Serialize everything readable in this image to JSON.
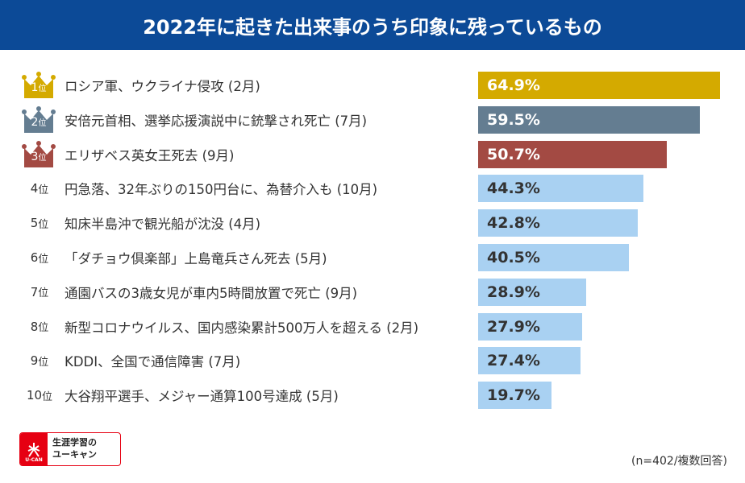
{
  "chart_data": {
    "type": "bar",
    "orientation": "horizontal",
    "title": "2022年に起きた出来事のうち印象に残っているもの",
    "unit": "%",
    "xlim": [
      0,
      100
    ],
    "grid": false,
    "items": [
      {
        "rank": "1",
        "rank_suffix": "位",
        "label": "ロシア軍、ウクライナ侵攻 (2月)",
        "value": 64.9,
        "value_label": "64.9%",
        "color": "#d4aa00",
        "text_color": "#ffffff",
        "crown_color": "#d4aa00"
      },
      {
        "rank": "2",
        "rank_suffix": "位",
        "label": "安倍元首相、選挙応援演説中に銃撃され死亡 (7月)",
        "value": 59.5,
        "value_label": "59.5%",
        "color": "#647d91",
        "text_color": "#ffffff",
        "crown_color": "#647d91"
      },
      {
        "rank": "3",
        "rank_suffix": "位",
        "label": "エリザベス英女王死去 (9月)",
        "value": 50.7,
        "value_label": "50.7%",
        "color": "#a34a43",
        "text_color": "#ffffff",
        "crown_color": "#a34a43"
      },
      {
        "rank": "4",
        "rank_suffix": "位",
        "label": "円急落、32年ぶりの150円台に、為替介入も (10月)",
        "value": 44.3,
        "value_label": "44.3%",
        "color": "#a9d1f2",
        "text_color": "#333333"
      },
      {
        "rank": "5",
        "rank_suffix": "位",
        "label": "知床半島沖で観光船が沈没 (4月)",
        "value": 42.8,
        "value_label": "42.8%",
        "color": "#a9d1f2",
        "text_color": "#333333"
      },
      {
        "rank": "6",
        "rank_suffix": "位",
        "label": "「ダチョウ倶楽部」上島竜兵さん死去 (5月)",
        "value": 40.5,
        "value_label": "40.5%",
        "color": "#a9d1f2",
        "text_color": "#333333"
      },
      {
        "rank": "7",
        "rank_suffix": "位",
        "label": "通園バスの3歳女児が車内5時間放置で死亡 (9月)",
        "value": 28.9,
        "value_label": "28.9%",
        "color": "#a9d1f2",
        "text_color": "#333333"
      },
      {
        "rank": "8",
        "rank_suffix": "位",
        "label": "新型コロナウイルス、国内感染累計500万人を超える (2月)",
        "value": 27.9,
        "value_label": "27.9%",
        "color": "#a9d1f2",
        "text_color": "#333333"
      },
      {
        "rank": "9",
        "rank_suffix": "位",
        "label": "KDDI、全国で通信障害 (7月)",
        "value": 27.4,
        "value_label": "27.4%",
        "color": "#a9d1f2",
        "text_color": "#333333"
      },
      {
        "rank": "10",
        "rank_suffix": "位",
        "label": "大谷翔平選手、メジャー通算100号達成 (5月)",
        "value": 19.7,
        "value_label": "19.7%",
        "color": "#a9d1f2",
        "text_color": "#333333"
      }
    ],
    "note": "(n=402/複数回答)"
  },
  "logo": {
    "brand": "U-CAN",
    "line1": "生涯学習の",
    "line2": "ユーキャン"
  }
}
